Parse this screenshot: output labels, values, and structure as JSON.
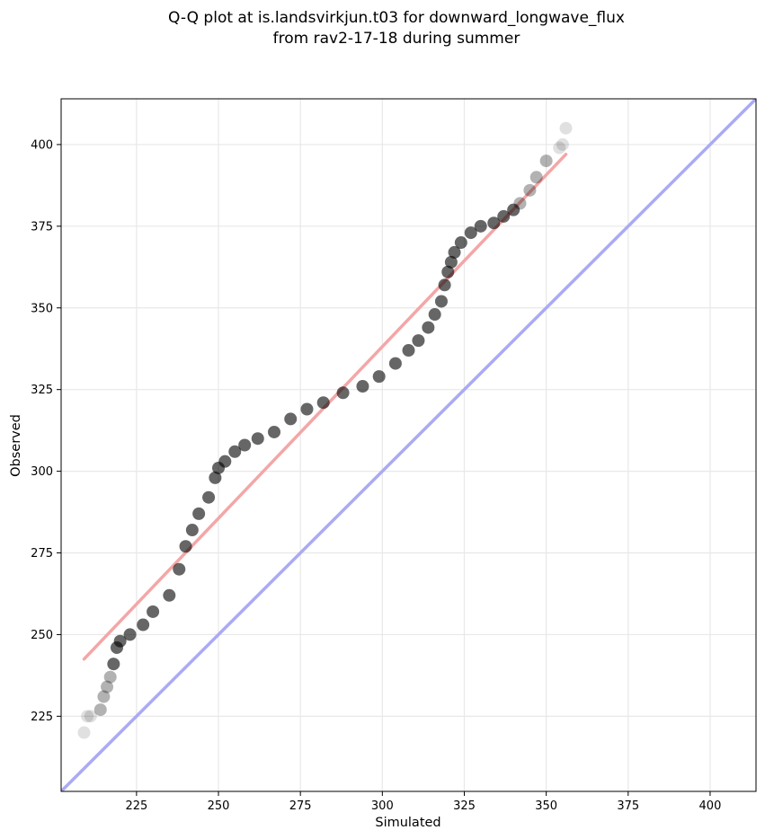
{
  "chart_data": {
    "type": "scatter",
    "title_lines": [
      "Q-Q plot at is.landsvirkjun.t03 for downward_longwave_flux",
      "from rav2-17-18 during summer"
    ],
    "xlabel": "Simulated",
    "ylabel": "Observed",
    "xlim": [
      202,
      414
    ],
    "ylim": [
      202,
      414
    ],
    "xticks": [
      225,
      250,
      275,
      300,
      325,
      350,
      375,
      400
    ],
    "yticks": [
      225,
      250,
      275,
      300,
      325,
      350,
      375,
      400
    ],
    "grid": true,
    "colors": {
      "points": "#000000",
      "fit_line": "#f4a6a6",
      "identity_line": "#aaaaf5",
      "grid": "#e8e8e8"
    },
    "series": [
      {
        "name": "quantiles",
        "x": [
          209,
          210,
          211,
          214,
          215,
          216,
          217,
          218,
          219,
          220,
          223,
          227,
          230,
          235,
          238,
          240,
          242,
          244,
          247,
          249,
          250,
          252,
          255,
          258,
          262,
          267,
          272,
          277,
          282,
          288,
          294,
          299,
          304,
          308,
          311,
          314,
          316,
          318,
          319,
          320,
          321,
          322,
          324,
          327,
          330,
          334,
          337,
          340,
          342,
          345,
          347,
          350,
          354,
          355,
          356
        ],
        "y": [
          220,
          225,
          225,
          227,
          231,
          234,
          237,
          241,
          246,
          248,
          250,
          253,
          257,
          262,
          270,
          277,
          282,
          287,
          292,
          298,
          301,
          303,
          306,
          308,
          310,
          312,
          316,
          319,
          321,
          324,
          326,
          329,
          333,
          337,
          340,
          344,
          348,
          352,
          357,
          361,
          364,
          367,
          370,
          373,
          375,
          376,
          378,
          380,
          382,
          386,
          390,
          395,
          399,
          400,
          405
        ]
      }
    ],
    "fit_line": {
      "x": [
        209,
        356
      ],
      "y": [
        242.5,
        397
      ]
    },
    "identity_line": {
      "x": [
        202,
        414
      ],
      "y": [
        202,
        414
      ]
    }
  }
}
